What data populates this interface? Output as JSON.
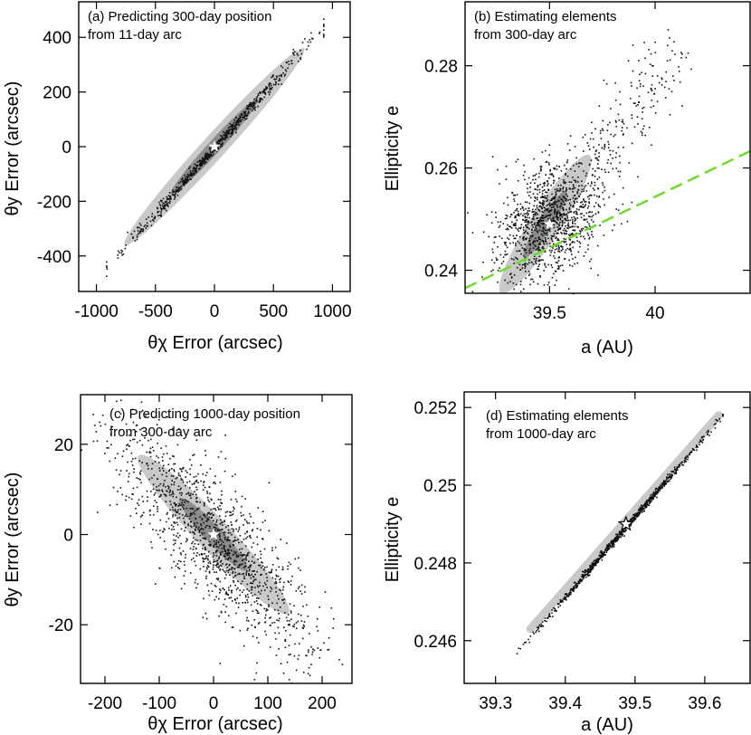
{
  "figure": {
    "panels": [
      {
        "id": "a",
        "annotation_line1": "(a) Predicting 300-day position",
        "annotation_line2": "from 11-day arc",
        "xlabel": "θχ Error (arcsec)",
        "ylabel": "θy Error (arcsec)"
      },
      {
        "id": "b",
        "annotation_line1": "(b) Estimating elements",
        "annotation_line2": "from 300-day arc",
        "xlabel": "a (AU)",
        "ylabel": "Ellipticity e"
      },
      {
        "id": "c",
        "annotation_line1": "(c) Predicting 1000-day position",
        "annotation_line2": "from 300-day arc",
        "xlabel": "θχ Error (arcsec)",
        "ylabel": "θy Error (arcsec)"
      },
      {
        "id": "d",
        "annotation_line1": "(d) Estimating elements",
        "annotation_line2": "from 1000-day arc",
        "xlabel": "a (AU)",
        "ylabel": "Ellipticity e"
      }
    ]
  },
  "colors": {
    "ellipse_outer": "#c9c9c9",
    "ellipse_inner": "#8c8c8c",
    "points": "#111111",
    "truth_marker": "#ffffff",
    "dashed_line": "#66dd22"
  },
  "chart_data": [
    {
      "panel": "a",
      "type": "scatter",
      "title": "(a) Predicting 300-day position from 11-day arc",
      "xlabel": "θχ Error (arcsec)",
      "ylabel": "θy Error (arcsec)",
      "xlim": [
        -1150,
        1150
      ],
      "ylim": [
        -530,
        530
      ],
      "xticks": [
        -1000,
        -500,
        0,
        500,
        1000
      ],
      "yticks": [
        -400,
        -200,
        0,
        200,
        400
      ],
      "scatter_trend": {
        "x_range": [
          -920,
          920
        ],
        "slope": 0.485,
        "intercept": 0,
        "scatter_sigma": 8,
        "n_points": 700
      },
      "ellipses": [
        {
          "level": "outer",
          "center": [
            0,
            0
          ],
          "major_axis_end": [
            760,
            360
          ],
          "minor_halfwidth": 60
        },
        {
          "level": "inner",
          "center": [
            0,
            0
          ],
          "major_axis_end": [
            370,
            175
          ],
          "minor_halfwidth": 30
        }
      ],
      "truth": [
        0,
        0
      ]
    },
    {
      "panel": "b",
      "type": "scatter",
      "title": "(b) Estimating elements from 300-day arc",
      "xlabel": "a (AU)",
      "ylabel": "Ellipticity e",
      "xlim": [
        39.1,
        40.45
      ],
      "ylim": [
        0.2355,
        0.2925
      ],
      "xticks": [
        39.5,
        40
      ],
      "yticks": [
        0.24,
        0.26,
        0.28
      ],
      "cloud": {
        "center": [
          39.49,
          0.2495
        ],
        "major_axis_end": [
          39.7,
          0.262
        ],
        "minor_halfwidth": 0.0035,
        "n_points": 1100
      },
      "tail": {
        "from": [
          39.6,
          0.255
        ],
        "to": [
          40.1,
          0.282
        ],
        "n_points": 220
      },
      "ellipses": [
        {
          "level": "outer",
          "center": [
            39.48,
            0.249
          ],
          "major_axis_end": [
            39.69,
            0.2625
          ],
          "minor_halfwidth": 0.0052
        },
        {
          "level": "inner",
          "center": [
            39.48,
            0.249
          ],
          "major_axis_end": [
            39.58,
            0.2555
          ],
          "minor_halfwidth": 0.0022
        }
      ],
      "dashed_line": {
        "x": [
          39.1,
          40.45
        ],
        "y": [
          0.2365,
          0.2633
        ]
      },
      "truth": [
        39.5,
        0.249
      ]
    },
    {
      "panel": "c",
      "type": "scatter",
      "title": "(c) Predicting 1000-day position from 300-day arc",
      "xlabel": "θχ Error (arcsec)",
      "ylabel": "θy Error (arcsec)",
      "xlim": [
        -245,
        255
      ],
      "ylim": [
        -33,
        31
      ],
      "xticks": [
        -200,
        -100,
        0,
        100,
        200
      ],
      "yticks": [
        -20,
        0,
        20
      ],
      "cloud": {
        "center": [
          0,
          -1
        ],
        "major_axis_end": [
          200,
          -30
        ],
        "minor_halfwidth": 4,
        "n_points": 1300
      },
      "ellipses": [
        {
          "level": "outer",
          "center": [
            0,
            0
          ],
          "major_axis_end": [
            138,
            -17.5
          ],
          "minor_halfwidth": 5
        },
        {
          "level": "inner",
          "center": [
            0,
            0
          ],
          "major_axis_end": [
            62,
            -8
          ],
          "minor_halfwidth": 2.5
        }
      ],
      "truth": [
        0,
        0
      ]
    },
    {
      "panel": "d",
      "type": "scatter",
      "title": "(d) Estimating elements from 1000-day arc",
      "xlabel": "a (AU)",
      "ylabel": "Ellipticity e",
      "xlim": [
        39.255,
        39.665
      ],
      "ylim": [
        0.2449,
        0.2524
      ],
      "xticks": [
        39.3,
        39.4,
        39.5,
        39.6
      ],
      "yticks": [
        0.246,
        0.248,
        0.25,
        0.252
      ],
      "yticklabels": [
        "0.246",
        "0.248",
        "0.25",
        "0.252"
      ],
      "scatter_trend": {
        "x_range": [
          39.33,
          39.625
        ],
        "from": [
          39.33,
          0.2457
        ],
        "to": [
          39.625,
          0.2518
        ],
        "scatter_sigma": 5e-05,
        "n_points": 900
      },
      "band": {
        "from": [
          39.35,
          0.2463
        ],
        "to": [
          39.62,
          0.2518
        ],
        "halfwidth": 8e-05
      },
      "truth": [
        39.487,
        0.249
      ]
    }
  ]
}
